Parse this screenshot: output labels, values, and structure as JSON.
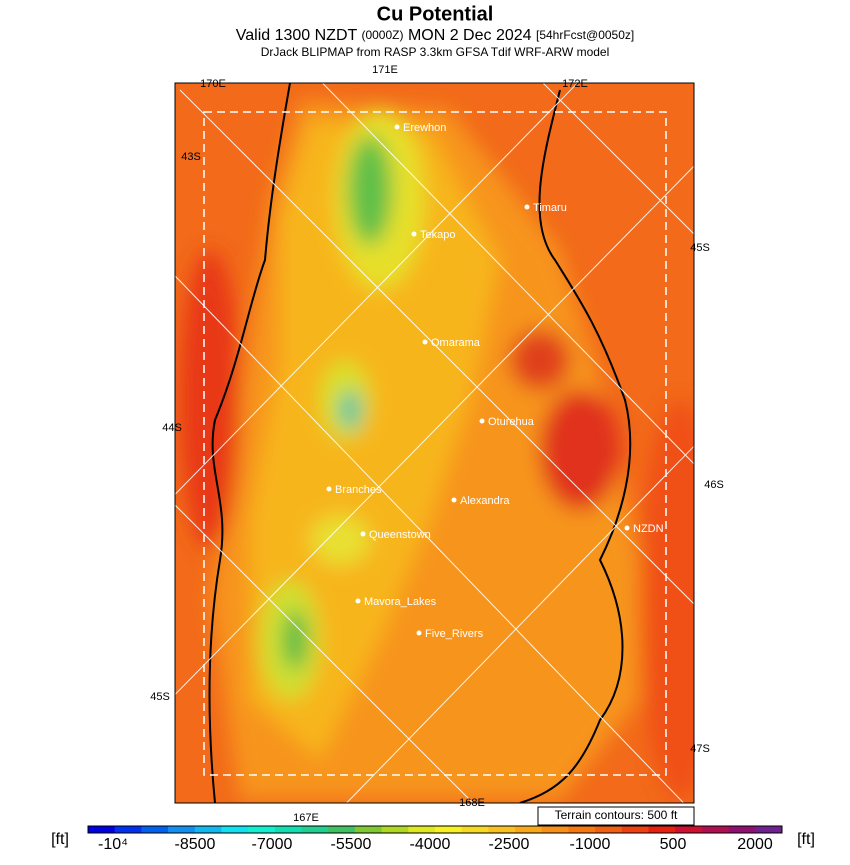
{
  "header": {
    "title": "Cu Potential",
    "valid": "Valid 1300 NZDT",
    "zulu": "(0000Z)",
    "date": "MON 2 Dec 2024",
    "forecast": "[54hrFcst@0050z]",
    "model": "DrJack BLIPMAP from RASP 3.3km GFSA Tdif WRF-ARW model"
  },
  "map": {
    "grid_labels": [
      "170E",
      "171E",
      "172E",
      "43S",
      "45S",
      "44S",
      "46S",
      "45S",
      "47S",
      "167E",
      "168E"
    ],
    "places": [
      "Erewhon",
      "Timaru",
      "Tekapo",
      "Omarama",
      "Oturehua",
      "Branches",
      "Alexandra",
      "NZDN",
      "Queenstown",
      "Mavora_Lakes",
      "Five_Rivers"
    ],
    "contour_note": "Terrain contours: 500 ft"
  },
  "legend": {
    "unit_left": "[ft]",
    "unit_right": "[ft]",
    "ticks": [
      "-10⁴",
      "-8500",
      "-7000",
      "-5500",
      "-4000",
      "-2500",
      "-1000",
      "500",
      "2000"
    ],
    "colors": [
      "#0000e0",
      "#0030f0",
      "#0060f0",
      "#1090f0",
      "#10b8f0",
      "#10e0f0",
      "#10f0d0",
      "#10e0b0",
      "#20d090",
      "#40c060",
      "#80c830",
      "#b0d820",
      "#e0e820",
      "#f8f020",
      "#f8d820",
      "#f8c020",
      "#f8a818",
      "#f89018",
      "#f87810",
      "#f06010",
      "#f04010",
      "#e82010",
      "#d01030",
      "#b01050",
      "#901070",
      "#702090"
    ]
  }
}
